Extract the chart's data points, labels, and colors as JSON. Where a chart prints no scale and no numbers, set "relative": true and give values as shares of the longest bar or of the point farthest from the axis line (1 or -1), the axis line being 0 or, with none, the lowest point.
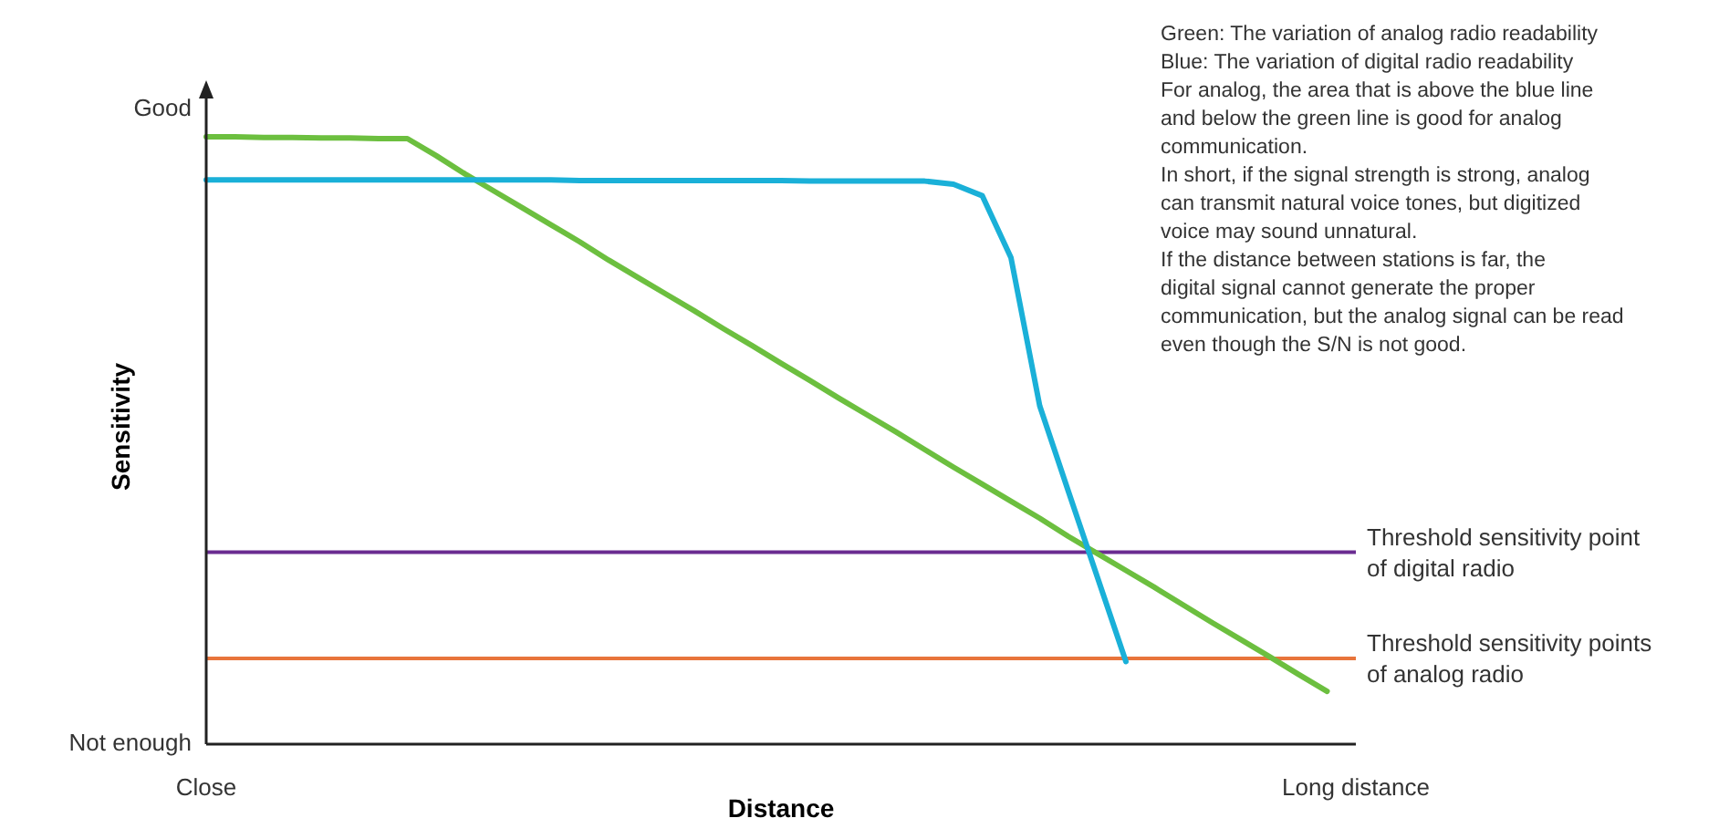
{
  "chart_data": {
    "type": "line",
    "xlabel": "Distance",
    "ylabel": "Sensitivity",
    "relative": true,
    "grid": false,
    "marker": "none",
    "line_style": "solid",
    "categories": [
      "Close",
      null,
      null,
      null,
      null,
      null,
      null,
      null,
      null,
      null,
      null,
      null,
      null,
      null,
      null,
      null,
      null,
      null,
      null,
      null,
      null,
      null,
      null,
      null,
      null,
      null,
      null,
      null,
      null,
      null,
      null,
      null,
      null,
      null,
      null,
      null,
      null,
      null,
      null,
      null,
      "Long distance"
    ],
    "series": [
      {
        "color": "#6cbf3f",
        "values": [
          1,
          1,
          0.999,
          0.999,
          0.998,
          0.998,
          0.997,
          0.997,
          0.969,
          0.939,
          0.911,
          0.883,
          0.855,
          0.827,
          0.797,
          0.769,
          0.741,
          0.713,
          0.684,
          0.656,
          0.627,
          0.599,
          0.57,
          0.542,
          0.514,
          0.485,
          0.456,
          0.428,
          0.4,
          0.372,
          0.342,
          0.314,
          0.286,
          0.258,
          0.229,
          0.2,
          0.172,
          0.144,
          0.115,
          0.087,
          null
        ]
      },
      {
        "color": "#1ab0d8",
        "values": [
          0.929,
          0.929,
          0.929,
          0.929,
          0.929,
          0.929,
          0.929,
          0.929,
          0.929,
          0.929,
          0.929,
          0.929,
          0.929,
          0.928,
          0.928,
          0.928,
          0.928,
          0.928,
          0.928,
          0.928,
          0.928,
          0.927,
          0.927,
          0.927,
          0.927,
          0.927,
          0.922,
          0.903,
          0.801,
          0.557,
          0.416,
          0.276,
          0.136,
          null,
          null,
          null,
          null,
          null,
          null,
          null,
          null
        ]
      }
    ],
    "ref_lines": [
      {
        "axis": "y",
        "value": 0.316,
        "label": "Threshold sensitivity point\nof digital radio",
        "color": "#6a2c91"
      },
      {
        "axis": "y",
        "value": 0.141,
        "label": "Threshold sensitivity points\nof analog radio",
        "color": "#e8743b"
      }
    ],
    "annotations": [
      "Good",
      "Not enough",
      "Green: The variation of analog radio readability",
      "Blue: The variation of digital radio readability",
      "For analog, the area that is above the blue line and below the green line is good for analog communication.",
      "In short, if the signal strength is strong, analog can transmit natural voice tones, but digitized voice may sound unnatural.",
      "If the distance between stations is far, the digital signal cannot generate the proper communication, but the analog signal can be read even though the S/N is not good."
    ]
  }
}
